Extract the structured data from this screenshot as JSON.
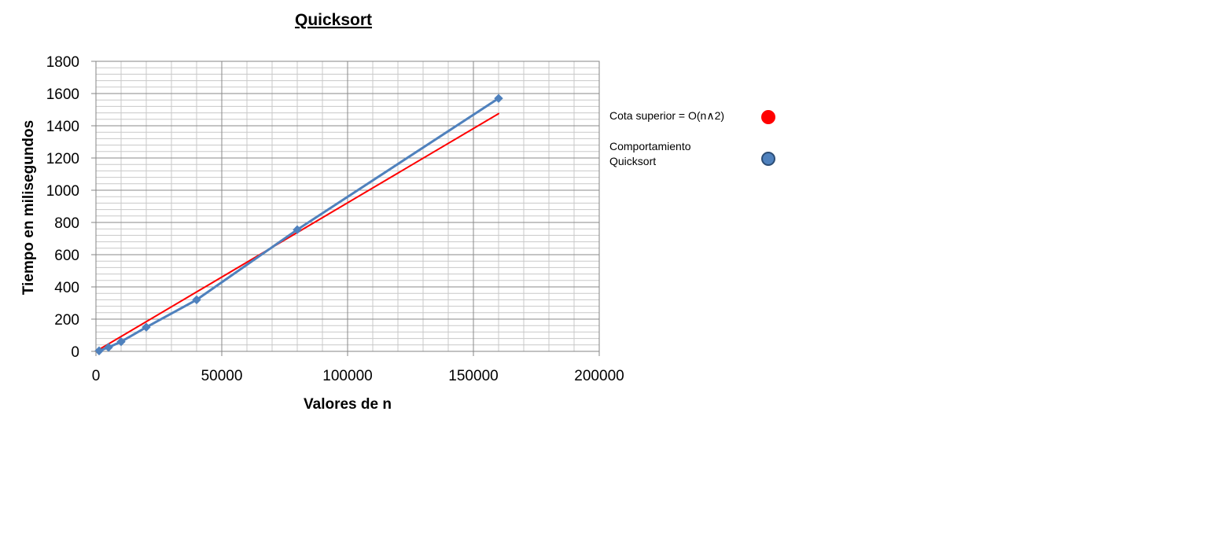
{
  "chart_data": {
    "type": "line",
    "title": "Quicksort",
    "xlabel": "Valores de n",
    "ylabel": "Tiempo en milisegundos",
    "xlim": [
      0,
      200000
    ],
    "ylim": [
      0,
      1800
    ],
    "x_ticks": [
      0,
      50000,
      100000,
      150000,
      200000
    ],
    "y_ticks": [
      0,
      200,
      400,
      600,
      800,
      1000,
      1200,
      1400,
      1600,
      1800
    ],
    "x_tick_labels": [
      "0",
      "50000",
      "100000",
      "150000",
      "200000"
    ],
    "y_tick_labels": [
      "0",
      "200",
      "400",
      "600",
      "800",
      "1000",
      "1200",
      "1400",
      "1600",
      "1800"
    ],
    "grid": true,
    "legend_position": "right",
    "series": [
      {
        "name": "Cota superior = O(n^2)",
        "color": "#ff0000",
        "marker": "none",
        "x": [
          0,
          160000
        ],
        "y": [
          0,
          1475
        ]
      },
      {
        "name": "Comportamiento Quicksort",
        "color": "#4f81bd",
        "marker": "diamond",
        "x": [
          1250,
          5000,
          10000,
          20000,
          40000,
          80000,
          160000
        ],
        "y": [
          3,
          25,
          60,
          150,
          320,
          755,
          1570
        ]
      }
    ],
    "legend": [
      {
        "label": "Cota superior = O(n^2)",
        "color": "#ff0000",
        "icon": "red-circle"
      },
      {
        "label": "Comportamiento Quicksort",
        "color": "#4f81bd",
        "icon": "blue-circle"
      }
    ]
  }
}
